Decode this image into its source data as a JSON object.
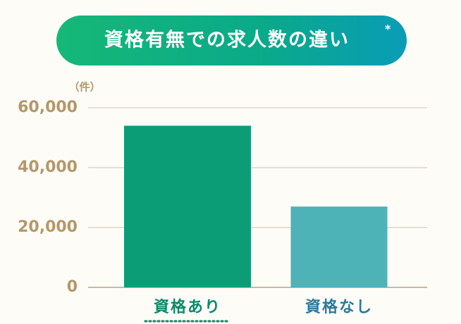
{
  "chart_data": {
    "type": "bar",
    "title": "資格有無での求人数の違い",
    "title_note": "*",
    "y_label": "（件）",
    "categories": [
      "資格あり",
      "資格なし"
    ],
    "values": [
      54000,
      27000
    ],
    "colors": [
      "#0b9e76",
      "#4db3b6"
    ],
    "label_colors": [
      "#0b8a68",
      "#2a7a9c"
    ],
    "ylim": [
      0,
      60000
    ],
    "yticks": [
      0,
      {
        "value": 20000,
        "label": "20,000"
      },
      {
        "value": 40000,
        "label": "40,000"
      },
      {
        "value": 60000,
        "label": "60,000"
      }
    ],
    "grid": true
  }
}
